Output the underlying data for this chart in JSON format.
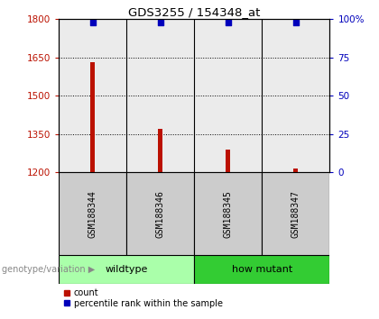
{
  "title": "GDS3255 / 154348_at",
  "samples": [
    "GSM188344",
    "GSM188346",
    "GSM188345",
    "GSM188347"
  ],
  "bar_values": [
    1630,
    1370,
    1290,
    1215
  ],
  "bar_bottom": 1200,
  "percentile_values": [
    98,
    98,
    98,
    98
  ],
  "bar_color": "#bb1100",
  "scatter_color": "#0000bb",
  "ylim_left": [
    1200,
    1800
  ],
  "yticks_left": [
    1200,
    1350,
    1500,
    1650,
    1800
  ],
  "ylim_right": [
    0,
    100
  ],
  "yticks_right": [
    0,
    25,
    50,
    75,
    100
  ],
  "ytick_labels_right": [
    "0",
    "25",
    "50",
    "75",
    "100%"
  ],
  "groups": [
    {
      "label": "wildtype",
      "indices": [
        0,
        1
      ],
      "color": "#aaffaa"
    },
    {
      "label": "how mutant",
      "indices": [
        2,
        3
      ],
      "color": "#33cc33"
    }
  ],
  "genotype_label": "genotype/variation",
  "legend_items": [
    {
      "label": "count",
      "color": "#bb1100"
    },
    {
      "label": "percentile rank within the sample",
      "color": "#0000bb"
    }
  ],
  "bar_width": 0.07,
  "background_color": "#ffffff",
  "plot_bg_color": "#ebebeb",
  "sample_bg_color": "#cccccc"
}
